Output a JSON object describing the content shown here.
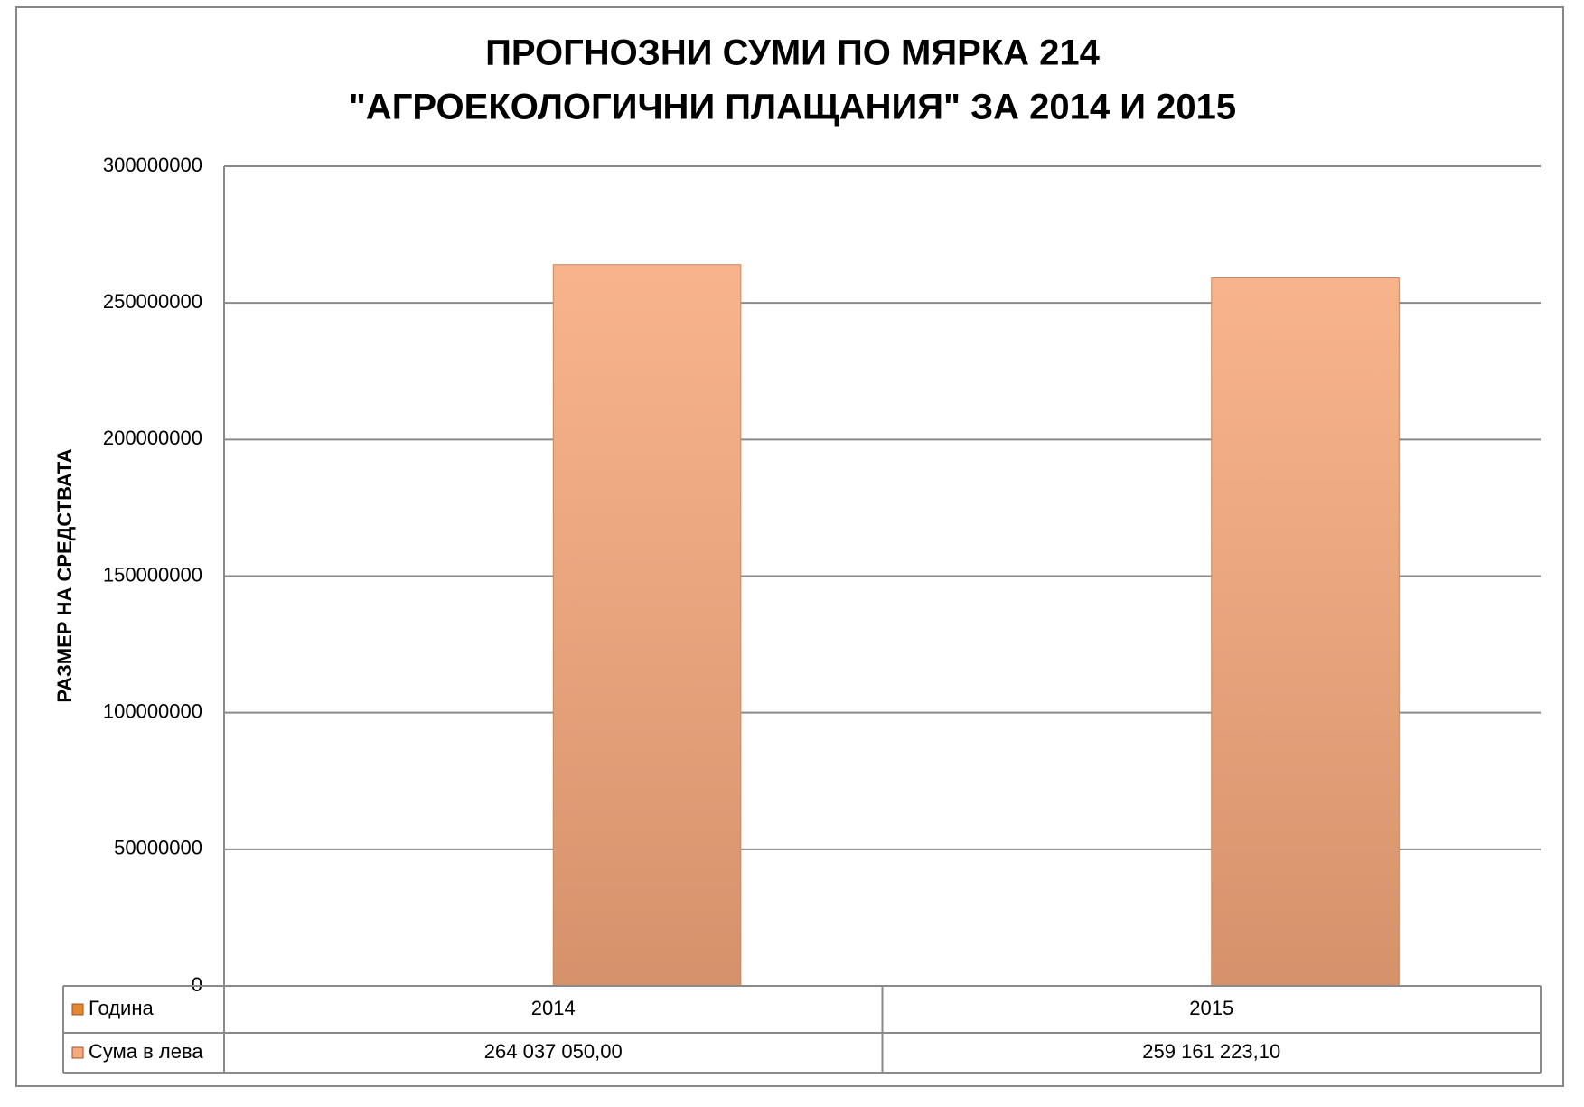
{
  "chart_data": {
    "type": "bar",
    "title": [
      "ПРОГНОЗНИ СУМИ ПО МЯРКА 214",
      "\"АГРОЕКОЛОГИЧНИ ПЛАЩАНИЯ\" ЗА 2014 И 2015"
    ],
    "y_label": "РАЗМЕР НА СРЕДСТВАТА",
    "categories": [
      null,
      null
    ],
    "series": [
      {
        "name": "Година",
        "color": "#e3882a",
        "values": [
          2014,
          2015
        ]
      },
      {
        "name": "Сума в лева",
        "color": "#f7a97c",
        "values": [
          264037050.0,
          259161223.1
        ],
        "value_labels": [
          "264 037 050,00",
          "259 161 223,10"
        ]
      }
    ],
    "ylim": [
      0,
      300000000
    ],
    "yticks": [
      0,
      50000000,
      100000000,
      150000000,
      200000000,
      250000000,
      300000000
    ],
    "grid": true
  }
}
